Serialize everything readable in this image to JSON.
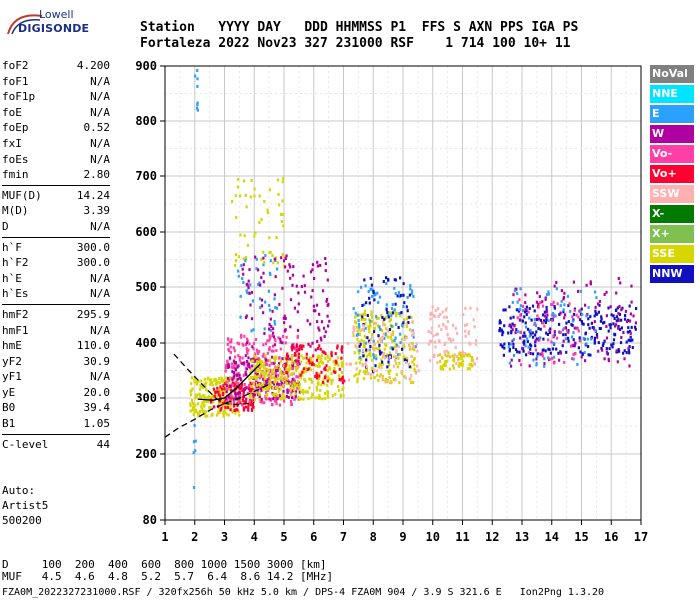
{
  "logo": {
    "brand_top": "Lowell",
    "brand_bottom": "DIGISONDE"
  },
  "header": {
    "line1": "Station   YYYY DAY   DDD HHMMSS P1  FFS S AXN PPS IGA PS",
    "line2": "Fortaleza 2022 Nov23 327 231000 RSF    1 714 100 10+ 11"
  },
  "params": [
    {
      "group": [
        {
          "name": "foF2",
          "value": "4.200"
        },
        {
          "name": "foF1",
          "value": "N/A"
        },
        {
          "name": "foF1p",
          "value": "N/A"
        },
        {
          "name": "foE",
          "value": "N/A"
        },
        {
          "name": "foEp",
          "value": "0.52"
        },
        {
          "name": "fxI",
          "value": "N/A"
        },
        {
          "name": "foEs",
          "value": "N/A"
        },
        {
          "name": "fmin",
          "value": "2.80"
        }
      ]
    },
    {
      "group": [
        {
          "name": "MUF(D)",
          "value": "14.24"
        },
        {
          "name": "M(D)",
          "value": "3.39"
        },
        {
          "name": "D",
          "value": "N/A"
        }
      ]
    },
    {
      "group": [
        {
          "name": "h`F",
          "value": "300.0"
        },
        {
          "name": "h`F2",
          "value": "300.0"
        },
        {
          "name": "h`E",
          "value": "N/A"
        },
        {
          "name": "h`Es",
          "value": "N/A"
        }
      ]
    },
    {
      "group": [
        {
          "name": "hmF2",
          "value": "295.9"
        },
        {
          "name": "hmF1",
          "value": "N/A"
        },
        {
          "name": "hmE",
          "value": "110.0"
        },
        {
          "name": "yF2",
          "value": "30.9"
        },
        {
          "name": "yF1",
          "value": "N/A"
        },
        {
          "name": "yE",
          "value": "20.0"
        },
        {
          "name": "B0",
          "value": "39.4"
        },
        {
          "name": "B1",
          "value": "1.05"
        }
      ]
    },
    {
      "group": [
        {
          "name": "C-level",
          "value": "44"
        }
      ]
    }
  ],
  "auto": {
    "line1": "Auto:",
    "line2": "Artist5",
    "line3": "500200"
  },
  "footer": {
    "d_line": "D     100  200  400  600  800 1000 1500 3000 [km]",
    "muf_line": "MUF   4.5  4.6  4.8  5.2  5.7  6.4  8.6 14.2 [MHz]",
    "file_line": "FZA0M_2022327231000.RSF / 320fx256h 50 kHz 5.0 km / DPS-4 FZA0M 904 / 3.9 S 321.6 E   Ion2Png 1.3.20"
  },
  "legend": [
    {
      "label": "NoVal",
      "color": "#808080"
    },
    {
      "label": "NNE",
      "color": "#00e5ff"
    },
    {
      "label": "E",
      "color": "#2aa0ff"
    },
    {
      "label": "W",
      "color": "#b000a0"
    },
    {
      "label": "Vo-",
      "color": "#ff3fa6"
    },
    {
      "label": "Vo+",
      "color": "#ff0030"
    },
    {
      "label": "SSW",
      "color": "#ffb0b0"
    },
    {
      "label": "X-",
      "color": "#007a00"
    },
    {
      "label": "X+",
      "color": "#80c050"
    },
    {
      "label": "SSE",
      "color": "#d6d600"
    },
    {
      "label": "NNW",
      "color": "#1010c0"
    }
  ],
  "chart_data": {
    "type": "scatter",
    "title": "",
    "xlabel": "",
    "ylabel": "",
    "xlim": [
      1,
      17
    ],
    "ylim": [
      80,
      900
    ],
    "x_ticks": [
      1,
      2,
      3,
      4,
      5,
      6,
      7,
      8,
      9,
      10,
      11,
      12,
      13,
      14,
      15,
      16,
      17
    ],
    "y_ticks": [
      80,
      200,
      300,
      400,
      500,
      600,
      700,
      800,
      900
    ],
    "grid": "on",
    "legend_placement": "right",
    "clusters": [
      {
        "x": [
          1.95,
          2.1
        ],
        "y": [
          805,
          895
        ],
        "color": "#2aa0ff",
        "count": 8
      },
      {
        "x": [
          1.8,
          3.5
        ],
        "y": [
          270,
          340
        ],
        "color": "#d6d600",
        "count": 220
      },
      {
        "x": [
          2.5,
          4.0
        ],
        "y": [
          280,
          330
        ],
        "color": "#ff0030",
        "count": 120
      },
      {
        "x": [
          3.0,
          5.5
        ],
        "y": [
          290,
          420
        ],
        "color": "#ff3fa6",
        "count": 260
      },
      {
        "x": [
          3.0,
          5.5
        ],
        "y": [
          300,
          380
        ],
        "color": "#b000a0",
        "count": 180
      },
      {
        "x": [
          3.8,
          7.0
        ],
        "y": [
          300,
          380
        ],
        "color": "#d6d600",
        "count": 300
      },
      {
        "x": [
          3.4,
          4.8
        ],
        "y": [
          420,
          560
        ],
        "color": "#2aa0ff",
        "count": 40
      },
      {
        "x": [
          3.2,
          5.0
        ],
        "y": [
          540,
          700
        ],
        "color": "#d6d600",
        "count": 55
      },
      {
        "x": [
          3.5,
          6.5
        ],
        "y": [
          380,
          560
        ],
        "color": "#b000a0",
        "count": 120
      },
      {
        "x": [
          5.0,
          7.0
        ],
        "y": [
          330,
          400
        ],
        "color": "#ff0030",
        "count": 80
      },
      {
        "x": [
          7.3,
          9.4
        ],
        "y": [
          330,
          460
        ],
        "color": "#d6d600",
        "count": 220
      },
      {
        "x": [
          7.3,
          9.4
        ],
        "y": [
          370,
          510
        ],
        "color": "#2aa0ff",
        "count": 80
      },
      {
        "x": [
          7.5,
          9.2
        ],
        "y": [
          350,
          520
        ],
        "color": "#1010c0",
        "count": 70
      },
      {
        "x": [
          7.0,
          9.5
        ],
        "y": [
          330,
          440
        ],
        "color": "#ffb0b0",
        "count": 80
      },
      {
        "x": [
          9.8,
          11.5
        ],
        "y": [
          360,
          470
        ],
        "color": "#ffb0b0",
        "count": 90
      },
      {
        "x": [
          10.2,
          11.3
        ],
        "y": [
          355,
          385
        ],
        "color": "#d6d600",
        "count": 50
      },
      {
        "x": [
          12.2,
          16.8
        ],
        "y": [
          380,
          470
        ],
        "color": "#1010c0",
        "count": 260
      },
      {
        "x": [
          12.5,
          16.8
        ],
        "y": [
          360,
          520
        ],
        "color": "#b000a0",
        "count": 110
      },
      {
        "x": [
          12.5,
          15.5
        ],
        "y": [
          360,
          500
        ],
        "color": "#2aa0ff",
        "count": 70
      },
      {
        "x": [
          12.8,
          15.0
        ],
        "y": [
          360,
          480
        ],
        "color": "#ff3fa6",
        "count": 50
      },
      {
        "x": [
          1.9,
          2.0
        ],
        "y": [
          130,
          260
        ],
        "color": "#2aa0ff",
        "count": 6
      }
    ],
    "curves": [
      {
        "style": "dashed",
        "x": [
          1,
          1.5,
          2,
          2.5,
          3,
          3.5,
          4,
          4.5
        ],
        "y": [
          230,
          248,
          262,
          278,
          290,
          300,
          312,
          325
        ]
      },
      {
        "style": "dashed",
        "x": [
          1.3,
          1.8,
          2.3,
          2.7,
          3.0,
          3.5,
          4.0
        ],
        "y": [
          380,
          350,
          322,
          300,
          290,
          288,
          292
        ]
      },
      {
        "style": "solid",
        "x": [
          2.1,
          2.6,
          3.0,
          3.4,
          3.8,
          4.2
        ],
        "y": [
          298,
          296,
          300,
          318,
          340,
          362
        ]
      }
    ]
  }
}
